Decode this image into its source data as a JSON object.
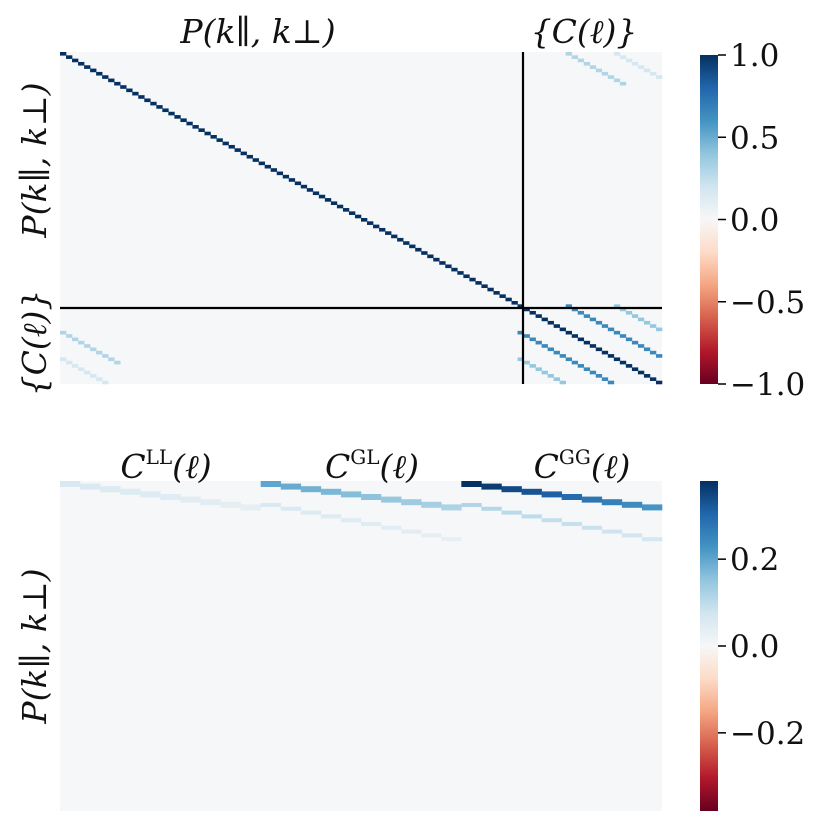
{
  "chart_data": [
    {
      "type": "heatmap",
      "title": "",
      "column_blocks": [
        "P(k∥, k⊥)",
        "{C(ℓ)}"
      ],
      "row_blocks": [
        "P(k∥, k⊥)",
        "{C(ℓ)}"
      ],
      "n_rows": 100,
      "n_cols": 100,
      "block_split_index": 76,
      "grid": false,
      "features": [
        {
          "name": "P-P diagonal",
          "value": 1.0
        },
        {
          "name": "C-C main diagonal",
          "value": 1.0
        },
        {
          "name": "C-C off-diagonal bands",
          "value": 0.65
        },
        {
          "name": "P-C cross band",
          "value": 0.3
        },
        {
          "name": "background",
          "value": 0.0
        }
      ],
      "colorbar": {
        "colormap": "RdBu",
        "vmin": -1.0,
        "vmax": 1.0,
        "ticks": [
          1.0,
          0.5,
          0.0,
          -0.5,
          -1.0
        ],
        "tick_labels": [
          "1.0",
          "0.5",
          "0.0",
          "−0.5",
          "−1.0"
        ],
        "position": "right"
      }
    },
    {
      "type": "heatmap",
      "title": "",
      "column_blocks": [
        "C",
        "C",
        "C"
      ],
      "column_block_superscripts": [
        "LL",
        "GL",
        "GG"
      ],
      "column_block_suffix": "(ℓ)",
      "row_label": "P(k∥, k⊥)",
      "grid": false,
      "block_values": [
        {
          "block": "LL",
          "max": 0.06
        },
        {
          "block": "GL",
          "max": 0.2
        },
        {
          "block": "GG",
          "max": 0.38
        }
      ],
      "colorbar": {
        "colormap": "RdBu",
        "vmin": -0.38,
        "vmax": 0.38,
        "ticks": [
          0.2,
          0.0,
          -0.2
        ],
        "tick_labels": [
          "0.2",
          "0.0",
          "−0.2"
        ],
        "position": "right"
      }
    }
  ]
}
